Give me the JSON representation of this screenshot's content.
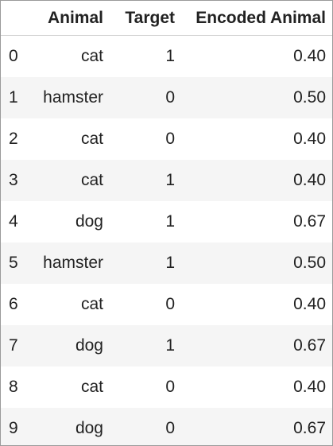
{
  "table": {
    "columns": [
      "",
      "Animal",
      "Target",
      "Encoded Animal"
    ],
    "rows": [
      {
        "index": "0",
        "animal": "cat",
        "target": "1",
        "encoded": "0.40"
      },
      {
        "index": "1",
        "animal": "hamster",
        "target": "0",
        "encoded": "0.50"
      },
      {
        "index": "2",
        "animal": "cat",
        "target": "0",
        "encoded": "0.40"
      },
      {
        "index": "3",
        "animal": "cat",
        "target": "1",
        "encoded": "0.40"
      },
      {
        "index": "4",
        "animal": "dog",
        "target": "1",
        "encoded": "0.67"
      },
      {
        "index": "5",
        "animal": "hamster",
        "target": "1",
        "encoded": "0.50"
      },
      {
        "index": "6",
        "animal": "cat",
        "target": "0",
        "encoded": "0.40"
      },
      {
        "index": "7",
        "animal": "dog",
        "target": "1",
        "encoded": "0.67"
      },
      {
        "index": "8",
        "animal": "cat",
        "target": "0",
        "encoded": "0.40"
      },
      {
        "index": "9",
        "animal": "dog",
        "target": "0",
        "encoded": "0.67"
      }
    ]
  },
  "colors": {
    "stripe": "#f5f5f5",
    "border": "#9a9a9a",
    "text": "#222222"
  }
}
